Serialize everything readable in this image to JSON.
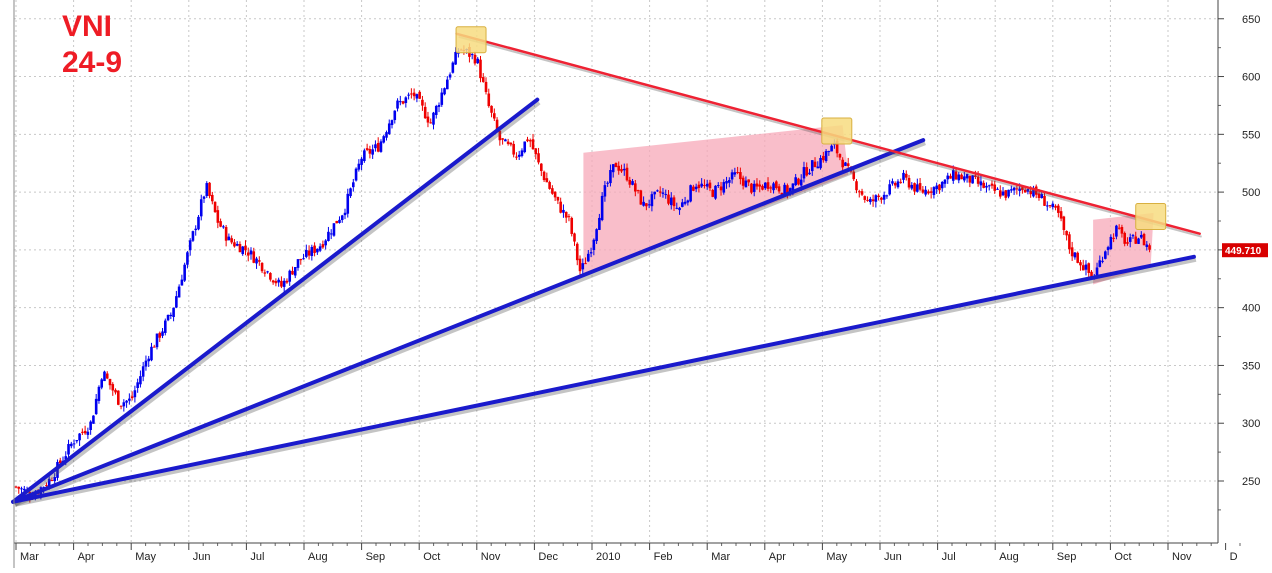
{
  "title": {
    "line1": "VNI",
    "line2": "24-9"
  },
  "colors": {
    "up": "#0000ee",
    "down": "#ee0000",
    "trend_support": "#1a1acc",
    "trend_resistance": "#ee2233",
    "shade": "#f7a8b8",
    "highlight": "#f7dc80",
    "last_price_bg": "#d80000",
    "grid": "#c8c8c8"
  },
  "chart_data": {
    "type": "candlestick",
    "title": "VNI 24-9",
    "ylim": [
      200,
      660
    ],
    "y_ticks": [
      250,
      300,
      350,
      400,
      450,
      500,
      550,
      600,
      650
    ],
    "x_labels": [
      "Mar",
      "Apr",
      "May",
      "Jun",
      "Jul",
      "Aug",
      "Sep",
      "Oct",
      "Nov",
      "Dec",
      "2010",
      "Feb",
      "Mar",
      "Apr",
      "May",
      "Jun",
      "Jul",
      "Aug",
      "Sep",
      "Oct",
      "Nov",
      "D"
    ],
    "x_range_months": [
      0,
      21.45
    ],
    "last_price": 449.71,
    "last_price_label": "449.710",
    "price_path": [
      [
        0.0,
        245
      ],
      [
        0.3,
        238
      ],
      [
        0.6,
        252
      ],
      [
        1.0,
        285
      ],
      [
        1.3,
        300
      ],
      [
        1.5,
        345
      ],
      [
        1.8,
        318
      ],
      [
        2.0,
        320
      ],
      [
        2.3,
        360
      ],
      [
        2.7,
        395
      ],
      [
        3.0,
        450
      ],
      [
        3.3,
        505
      ],
      [
        3.5,
        475
      ],
      [
        3.7,
        458
      ],
      [
        4.0,
        450
      ],
      [
        4.3,
        435
      ],
      [
        4.6,
        418
      ],
      [
        4.9,
        440
      ],
      [
        5.3,
        455
      ],
      [
        5.7,
        485
      ],
      [
        6.0,
        530
      ],
      [
        6.3,
        540
      ],
      [
        6.6,
        575
      ],
      [
        6.9,
        585
      ],
      [
        7.2,
        560
      ],
      [
        7.5,
        600
      ],
      [
        7.7,
        625
      ],
      [
        8.0,
        615
      ],
      [
        8.2,
        575
      ],
      [
        8.4,
        545
      ],
      [
        8.7,
        532
      ],
      [
        8.9,
        548
      ],
      [
        9.1,
        520
      ],
      [
        9.4,
        490
      ],
      [
        9.6,
        475
      ],
      [
        9.8,
        430
      ],
      [
        10.0,
        455
      ],
      [
        10.2,
        498
      ],
      [
        10.4,
        525
      ],
      [
        10.6,
        515
      ],
      [
        10.9,
        488
      ],
      [
        11.2,
        500
      ],
      [
        11.5,
        485
      ],
      [
        11.8,
        508
      ],
      [
        12.1,
        500
      ],
      [
        12.5,
        515
      ],
      [
        12.8,
        502
      ],
      [
        13.1,
        508
      ],
      [
        13.4,
        500
      ],
      [
        13.7,
        518
      ],
      [
        14.0,
        530
      ],
      [
        14.2,
        540
      ],
      [
        14.5,
        513
      ],
      [
        14.8,
        490
      ],
      [
        15.1,
        500
      ],
      [
        15.4,
        512
      ],
      [
        15.7,
        500
      ],
      [
        16.0,
        505
      ],
      [
        16.3,
        515
      ],
      [
        16.6,
        510
      ],
      [
        16.9,
        502
      ],
      [
        17.2,
        498
      ],
      [
        17.5,
        505
      ],
      [
        17.8,
        495
      ],
      [
        18.1,
        480
      ],
      [
        18.3,
        450
      ],
      [
        18.5,
        438
      ],
      [
        18.7,
        425
      ],
      [
        18.9,
        450
      ],
      [
        19.1,
        468
      ],
      [
        19.3,
        455
      ],
      [
        19.5,
        462
      ],
      [
        19.7,
        450
      ]
    ],
    "trendlines": [
      {
        "name": "support-steep",
        "color": "trend_support",
        "from": [
          -0.05,
          232
        ],
        "to": [
          9.05,
          580
        ]
      },
      {
        "name": "support-mid",
        "color": "trend_support",
        "from": [
          -0.05,
          232
        ],
        "to": [
          15.75,
          545
        ]
      },
      {
        "name": "support-long",
        "color": "trend_support",
        "from": [
          -0.05,
          232
        ],
        "to": [
          20.45,
          444
        ]
      },
      {
        "name": "resistance",
        "color": "trend_resistance",
        "from": [
          7.65,
          637
        ],
        "to": [
          20.55,
          464
        ]
      }
    ],
    "shaded_zones": [
      {
        "name": "wedge-2010",
        "points": [
          [
            9.85,
            534
          ],
          [
            9.85,
            428
          ],
          [
            14.45,
            515
          ],
          [
            14.35,
            558
          ]
        ]
      },
      {
        "name": "wedge-sep",
        "points": [
          [
            18.7,
            476
          ],
          [
            18.7,
            420
          ],
          [
            19.7,
            436
          ],
          [
            19.75,
            482
          ]
        ]
      }
    ],
    "highlights": [
      {
        "name": "oct-peak",
        "center": [
          7.9,
          631
        ]
      },
      {
        "name": "apr-touch",
        "center": [
          14.25,
          552
        ]
      },
      {
        "name": "oct-projection",
        "center": [
          19.7,
          478
        ]
      }
    ]
  }
}
